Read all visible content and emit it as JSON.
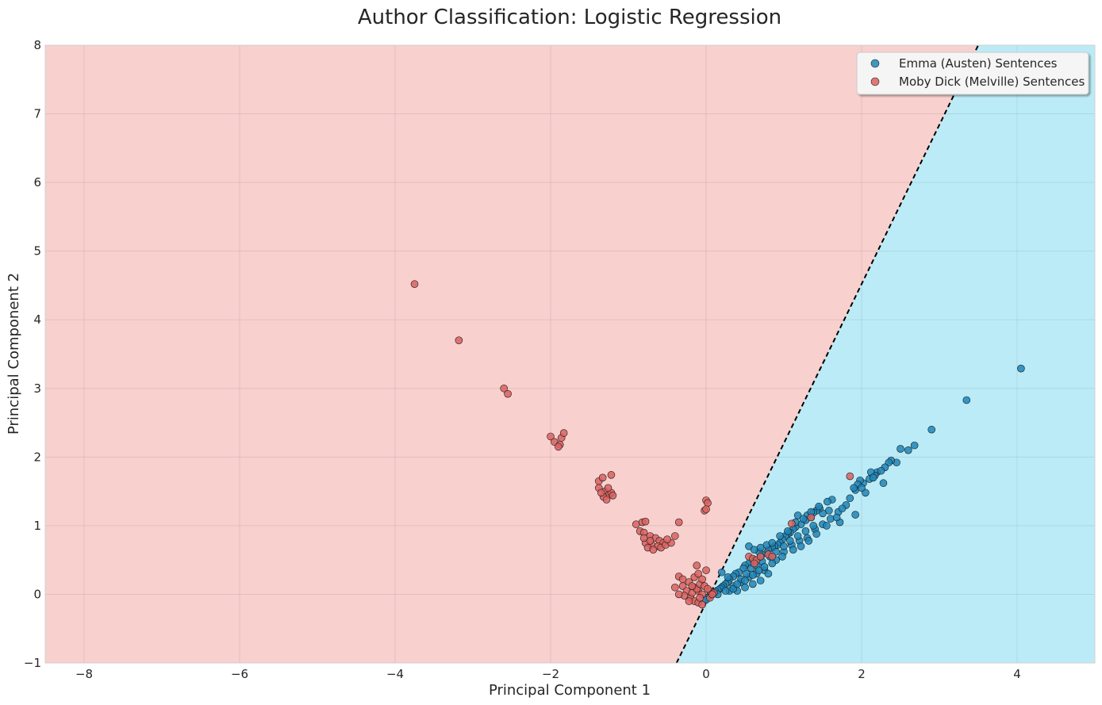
{
  "chart_data": {
    "type": "scatter",
    "title": "Author Classification: Logistic Regression",
    "xlabel": "Principal Component 1",
    "ylabel": "Principal Component 2",
    "xlim": [
      -8.5,
      5.0
    ],
    "ylim": [
      -1,
      8
    ],
    "xticks": [
      -8,
      -6,
      -4,
      -2,
      0,
      2,
      4
    ],
    "yticks": [
      -1,
      0,
      1,
      2,
      3,
      4,
      5,
      6,
      7,
      8
    ],
    "grid": true,
    "legend_position": "top-right",
    "decision_boundary": {
      "x1": -0.38,
      "y1": -1,
      "x2": 3.5,
      "y2": 8
    },
    "region_colors": {
      "melville": "#f8d0ce",
      "austen": "#bbebf6"
    },
    "series": [
      {
        "name": "Emma (Austen) Sentences",
        "color": "#1f86b8",
        "points": [
          [
            4.05,
            3.29
          ],
          [
            3.35,
            2.83
          ],
          [
            2.9,
            2.4
          ],
          [
            2.68,
            2.17
          ],
          [
            2.6,
            2.1
          ],
          [
            2.5,
            2.12
          ],
          [
            2.45,
            1.92
          ],
          [
            2.38,
            1.95
          ],
          [
            2.35,
            1.92
          ],
          [
            2.3,
            1.85
          ],
          [
            2.28,
            1.62
          ],
          [
            2.2,
            1.78
          ],
          [
            2.17,
            1.73
          ],
          [
            2.12,
            1.78
          ],
          [
            2.1,
            1.68
          ],
          [
            2.05,
            1.48
          ],
          [
            2.02,
            1.62
          ],
          [
            1.98,
            1.66
          ],
          [
            1.95,
            1.6
          ],
          [
            1.92,
            1.52
          ],
          [
            1.9,
            1.55
          ],
          [
            1.92,
            1.16
          ],
          [
            1.72,
            1.05
          ],
          [
            1.62,
            1.38
          ],
          [
            1.58,
            1.22
          ],
          [
            1.56,
            1.35
          ],
          [
            1.5,
            1.18
          ],
          [
            1.46,
            1.25
          ],
          [
            1.42,
            1.22
          ],
          [
            1.38,
            1.19
          ],
          [
            1.35,
            1.12
          ],
          [
            1.3,
            1.15
          ],
          [
            1.28,
            1.08
          ],
          [
            1.22,
            1.02
          ],
          [
            1.18,
            1.15
          ],
          [
            1.15,
            0.98
          ],
          [
            1.12,
            0.95
          ],
          [
            1.08,
            0.9
          ],
          [
            1.05,
            0.88
          ],
          [
            1.02,
            0.85
          ],
          [
            0.98,
            0.8
          ],
          [
            0.95,
            0.75
          ],
          [
            0.92,
            0.72
          ],
          [
            0.88,
            0.7
          ],
          [
            0.85,
            0.68
          ],
          [
            0.8,
            0.65
          ],
          [
            0.78,
            0.6
          ],
          [
            0.72,
            0.58
          ],
          [
            0.7,
            0.55
          ],
          [
            0.68,
            0.62
          ],
          [
            0.62,
            0.5
          ],
          [
            0.6,
            0.48
          ],
          [
            0.55,
            0.45
          ],
          [
            0.5,
            0.42
          ],
          [
            0.48,
            0.38
          ],
          [
            0.42,
            0.32
          ],
          [
            0.38,
            0.3
          ],
          [
            0.35,
            0.26
          ],
          [
            0.3,
            0.22
          ],
          [
            0.28,
            0.18
          ],
          [
            0.25,
            0.15
          ],
          [
            0.22,
            0.12
          ],
          [
            0.2,
            0.1
          ],
          [
            0.18,
            0.08
          ],
          [
            0.15,
            0.06
          ],
          [
            0.12,
            0.04
          ],
          [
            0.1,
            0.02
          ],
          [
            0.08,
            0.0
          ],
          [
            0.05,
            -0.02
          ],
          [
            0.02,
            -0.05
          ],
          [
            0.0,
            -0.08
          ],
          [
            0.2,
            0.32
          ],
          [
            0.28,
            0.25
          ],
          [
            0.35,
            0.12
          ],
          [
            0.45,
            0.18
          ],
          [
            0.55,
            0.25
          ],
          [
            0.65,
            0.3
          ],
          [
            0.75,
            0.35
          ],
          [
            0.4,
            0.05
          ],
          [
            0.5,
            0.1
          ],
          [
            0.6,
            0.15
          ],
          [
            0.7,
            0.2
          ],
          [
            0.8,
            0.3
          ],
          [
            0.9,
            0.5
          ],
          [
            1.0,
            0.62
          ],
          [
            1.1,
            0.72
          ],
          [
            1.2,
            0.78
          ],
          [
            1.3,
            0.82
          ],
          [
            1.4,
            0.95
          ],
          [
            1.5,
            1.02
          ],
          [
            1.6,
            1.1
          ],
          [
            1.7,
            1.2
          ],
          [
            1.8,
            1.3
          ],
          [
            0.55,
            0.7
          ],
          [
            0.62,
            0.65
          ],
          [
            0.7,
            0.68
          ],
          [
            0.78,
            0.72
          ],
          [
            0.85,
            0.75
          ],
          [
            0.95,
            0.85
          ],
          [
            1.05,
            0.92
          ],
          [
            1.15,
            1.05
          ],
          [
            1.25,
            1.1
          ],
          [
            1.35,
            1.2
          ],
          [
            1.45,
            1.28
          ],
          [
            0.3,
            0.05
          ],
          [
            0.35,
            0.08
          ],
          [
            0.45,
            0.22
          ],
          [
            0.52,
            0.3
          ],
          [
            0.58,
            0.38
          ],
          [
            0.65,
            0.42
          ],
          [
            0.72,
            0.48
          ],
          [
            0.82,
            0.55
          ],
          [
            0.9,
            0.62
          ],
          [
            1.0,
            0.7
          ],
          [
            1.08,
            0.78
          ],
          [
            1.18,
            0.85
          ],
          [
            1.28,
            0.92
          ],
          [
            1.38,
            1.0
          ],
          [
            0.15,
            0.0
          ],
          [
            0.25,
            0.05
          ],
          [
            0.4,
            0.15
          ],
          [
            0.5,
            0.2
          ],
          [
            0.6,
            0.28
          ],
          [
            0.68,
            0.35
          ],
          [
            0.75,
            0.4
          ],
          [
            0.85,
            0.45
          ],
          [
            0.98,
            0.55
          ],
          [
            1.12,
            0.65
          ],
          [
            1.22,
            0.7
          ],
          [
            1.32,
            0.78
          ],
          [
            1.42,
            0.88
          ],
          [
            1.55,
            1.0
          ],
          [
            1.68,
            1.12
          ],
          [
            1.75,
            1.25
          ],
          [
            1.85,
            1.4
          ],
          [
            2.0,
            1.55
          ],
          [
            2.15,
            1.7
          ],
          [
            2.25,
            1.8
          ]
        ]
      },
      {
        "name": "Moby Dick (Melville) Sentences",
        "color": "#d9625f",
        "points": [
          [
            -3.75,
            4.52
          ],
          [
            -3.18,
            3.7
          ],
          [
            -2.6,
            3.0
          ],
          [
            -2.55,
            2.92
          ],
          [
            -2.0,
            2.3
          ],
          [
            -1.95,
            2.22
          ],
          [
            -1.88,
            2.18
          ],
          [
            -1.86,
            2.28
          ],
          [
            -1.83,
            2.35
          ],
          [
            -1.9,
            2.15
          ],
          [
            -1.38,
            1.65
          ],
          [
            -1.33,
            1.7
          ],
          [
            -1.22,
            1.74
          ],
          [
            -1.38,
            1.55
          ],
          [
            -1.3,
            1.5
          ],
          [
            -1.25,
            1.45
          ],
          [
            -1.32,
            1.42
          ],
          [
            -1.22,
            1.48
          ],
          [
            -1.28,
            1.38
          ],
          [
            -1.2,
            1.44
          ],
          [
            -1.35,
            1.48
          ],
          [
            -1.26,
            1.55
          ],
          [
            -0.9,
            1.02
          ],
          [
            -0.82,
            1.05
          ],
          [
            -0.78,
            1.06
          ],
          [
            -0.35,
            1.05
          ],
          [
            -0.85,
            0.92
          ],
          [
            -0.8,
            0.9
          ],
          [
            -0.72,
            0.85
          ],
          [
            -0.65,
            0.82
          ],
          [
            -0.6,
            0.78
          ],
          [
            -0.55,
            0.75
          ],
          [
            -0.78,
            0.75
          ],
          [
            -0.7,
            0.72
          ],
          [
            -0.62,
            0.7
          ],
          [
            -0.75,
            0.68
          ],
          [
            -0.68,
            0.65
          ],
          [
            -0.58,
            0.68
          ],
          [
            -0.52,
            0.72
          ],
          [
            -0.45,
            0.75
          ],
          [
            -0.4,
            0.85
          ],
          [
            -0.5,
            0.8
          ],
          [
            -0.72,
            0.78
          ],
          [
            -0.8,
            0.82
          ],
          [
            0.0,
            1.37
          ],
          [
            0.02,
            1.33
          ],
          [
            -0.02,
            1.22
          ],
          [
            0.0,
            1.24
          ],
          [
            -0.35,
            0.26
          ],
          [
            -0.3,
            0.22
          ],
          [
            -0.3,
            0.12
          ],
          [
            -0.22,
            0.18
          ],
          [
            -0.15,
            0.1
          ],
          [
            -0.1,
            0.05
          ],
          [
            -0.05,
            0.0
          ],
          [
            -0.2,
            -0.05
          ],
          [
            -0.15,
            -0.1
          ],
          [
            -0.1,
            -0.12
          ],
          [
            -0.05,
            -0.15
          ],
          [
            -0.25,
            0.05
          ],
          [
            -0.18,
            0.02
          ],
          [
            -0.12,
            0.08
          ],
          [
            -0.08,
            0.15
          ],
          [
            -0.02,
            0.12
          ],
          [
            0.05,
            0.05
          ],
          [
            0.1,
            0.02
          ],
          [
            -0.28,
            -0.02
          ],
          [
            -0.22,
            -0.1
          ],
          [
            -0.15,
            0.25
          ],
          [
            -0.1,
            0.3
          ],
          [
            -0.12,
            0.42
          ],
          [
            0.0,
            0.35
          ],
          [
            0.05,
            -0.05
          ],
          [
            0.08,
            0.0
          ],
          [
            -0.35,
            0.0
          ],
          [
            -0.4,
            0.1
          ],
          [
            0.55,
            0.55
          ],
          [
            0.6,
            0.52
          ],
          [
            0.65,
            0.5
          ],
          [
            0.7,
            0.55
          ],
          [
            0.8,
            0.58
          ],
          [
            0.85,
            0.55
          ],
          [
            0.62,
            0.45
          ],
          [
            1.1,
            1.03
          ],
          [
            1.35,
            1.12
          ],
          [
            1.85,
            1.72
          ],
          [
            -0.05,
            0.22
          ],
          [
            -0.18,
            0.12
          ],
          [
            -0.08,
            -0.05
          ],
          [
            0.02,
            0.08
          ]
        ]
      }
    ]
  }
}
